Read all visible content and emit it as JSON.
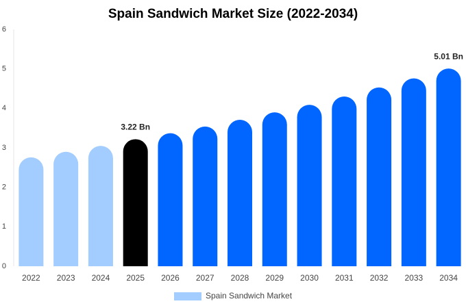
{
  "chart_data": {
    "type": "bar",
    "title": "Spain Sandwich Market Size (2022-2034)",
    "categories": [
      "2022",
      "2023",
      "2024",
      "2025",
      "2026",
      "2027",
      "2028",
      "2029",
      "2030",
      "2031",
      "2032",
      "2033",
      "2034"
    ],
    "series": [
      {
        "name": "Spain Sandwich Market",
        "color": "#a3cdfe",
        "colors": [
          "#a3cdfe",
          "#a3cdfe",
          "#a3cdfe",
          "#000000",
          "#0066ff",
          "#0066ff",
          "#0066ff",
          "#0066ff",
          "#0066ff",
          "#0066ff",
          "#0066ff",
          "#0066ff",
          "#0066ff"
        ],
        "values": [
          2.76,
          2.9,
          3.05,
          3.22,
          3.37,
          3.54,
          3.71,
          3.9,
          4.09,
          4.3,
          4.53,
          4.76,
          5.01
        ],
        "value_labels": [
          null,
          null,
          null,
          "3.22 Bn",
          null,
          null,
          null,
          null,
          null,
          null,
          null,
          null,
          "5.01 Bn"
        ]
      }
    ],
    "ylim": [
      0,
      6
    ],
    "yticks": [
      0,
      1,
      2,
      3,
      4,
      5,
      6
    ],
    "grid": false,
    "legend": "bottom"
  }
}
